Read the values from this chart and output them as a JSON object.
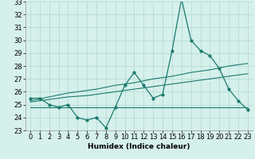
{
  "xlabel": "Humidex (Indice chaleur)",
  "ylabel": "",
  "bg_color": "#d6f0eb",
  "line_color": "#1a7a6e",
  "x_values": [
    0,
    1,
    2,
    3,
    4,
    5,
    6,
    7,
    8,
    9,
    10,
    11,
    12,
    13,
    14,
    15,
    16,
    17,
    18,
    19,
    20,
    21,
    22,
    23
  ],
  "y_main": [
    25.5,
    25.5,
    25.0,
    24.8,
    25.0,
    24.0,
    23.8,
    24.0,
    23.2,
    24.8,
    26.5,
    27.5,
    26.5,
    25.5,
    25.8,
    29.2,
    33.2,
    30.0,
    29.2,
    28.8,
    27.8,
    26.2,
    25.3,
    24.6
  ],
  "y_trend1": [
    25.3,
    25.45,
    25.6,
    25.75,
    25.9,
    26.0,
    26.1,
    26.2,
    26.35,
    26.5,
    26.6,
    26.7,
    26.85,
    27.0,
    27.1,
    27.2,
    27.35,
    27.5,
    27.6,
    27.7,
    27.85,
    28.0,
    28.1,
    28.2
  ],
  "y_trend2": [
    25.2,
    25.3,
    25.4,
    25.5,
    25.6,
    25.65,
    25.7,
    25.8,
    25.9,
    26.0,
    26.1,
    26.2,
    26.3,
    26.4,
    26.5,
    26.6,
    26.7,
    26.8,
    26.9,
    27.0,
    27.1,
    27.2,
    27.3,
    27.4
  ],
  "y_flat": [
    24.8,
    24.8,
    24.8,
    24.8,
    24.8,
    24.8,
    24.8,
    24.8,
    24.8,
    24.8,
    24.8,
    24.8,
    24.8,
    24.8,
    24.8,
    24.8,
    24.8,
    24.8,
    24.8,
    24.8,
    24.8,
    24.8,
    24.8,
    24.8
  ],
  "ylim": [
    23,
    33
  ],
  "xlim": [
    -0.5,
    23.5
  ],
  "yticks": [
    23,
    24,
    25,
    26,
    27,
    28,
    29,
    30,
    31,
    32,
    33
  ],
  "xticks": [
    0,
    1,
    2,
    3,
    4,
    5,
    6,
    7,
    8,
    9,
    10,
    11,
    12,
    13,
    14,
    15,
    16,
    17,
    18,
    19,
    20,
    21,
    22,
    23
  ],
  "grid_color": "#b0d8d0",
  "axis_fontsize": 6.5,
  "tick_fontsize": 6.0,
  "lw_main": 0.9,
  "lw_trend": 0.8,
  "lw_flat": 0.8,
  "marker_size": 2.0
}
